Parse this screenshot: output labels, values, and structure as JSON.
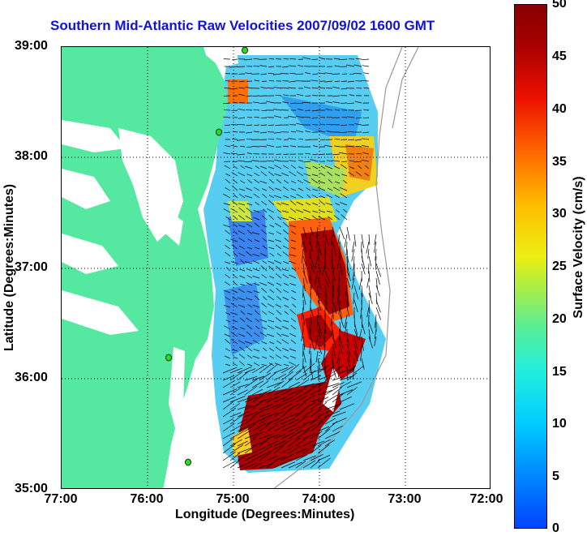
{
  "title": "Southern Mid-Atlantic Raw Velocities 2007/09/02 1600 GMT",
  "x_axis": {
    "label": "Longitude (Degrees:Minutes)",
    "ticks": [
      "77:00",
      "76:00",
      "75:00",
      "74:00",
      "73:00",
      "72:00"
    ]
  },
  "y_axis": {
    "label": "Latitude (Degrees:Minutes)",
    "ticks": [
      "39:00",
      "38:00",
      "37:00",
      "36:00",
      "35:00"
    ]
  },
  "colorbar": {
    "label": "Surface Velocity (cm/s)",
    "ticks": [
      "50",
      "45",
      "40",
      "35",
      "30",
      "25",
      "20",
      "15",
      "10",
      "5",
      "0"
    ],
    "range": [
      0,
      50
    ]
  },
  "colors": {
    "land": "#55e8a0",
    "title": "#1111dd",
    "station": "#22dd22"
  },
  "grid": "dotted",
  "arrows": "black velocity vectors"
}
